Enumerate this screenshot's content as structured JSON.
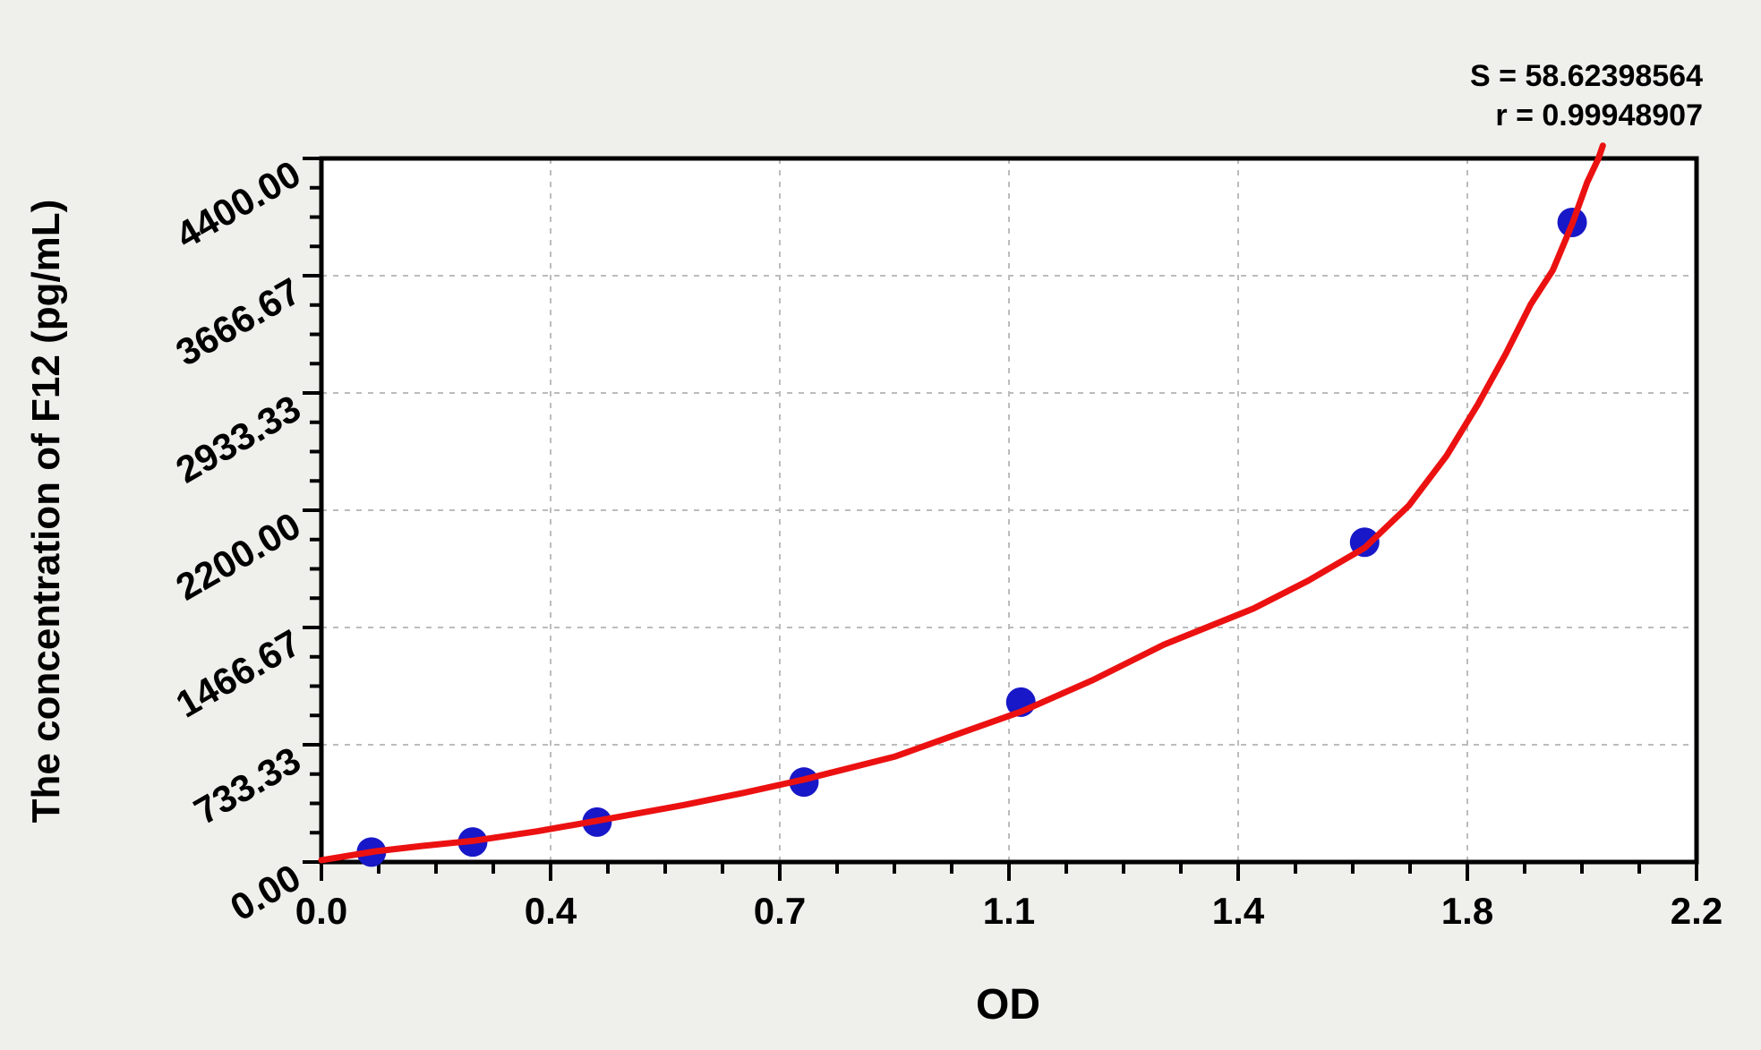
{
  "chart_data": {
    "type": "scatter",
    "title": "",
    "xlabel": "OD",
    "ylabel": "The concentration of F12 (pg/mL)",
    "stats": {
      "s": "S = 58.62398564",
      "r": "r = 0.99948907"
    },
    "xlim": [
      0,
      2.2
    ],
    "ylim": [
      0,
      4400
    ],
    "x_tick_labels": [
      "0.0",
      "0.4",
      "0.7",
      "1.1",
      "1.4",
      "1.8",
      "2.2"
    ],
    "y_tick_labels": [
      "0.00",
      "733.33",
      "1466.67",
      "2200.00",
      "2933.33",
      "3666.67",
      "4400.00"
    ],
    "minor_ticks_per_interval": 3,
    "grid": {
      "shown": true,
      "style": "dashed",
      "at": "interior-major-ticks"
    },
    "legend": {
      "shown": false
    },
    "series": [
      {
        "name": "standard-points",
        "type": "scatter",
        "color": "#1818c8",
        "points": [
          {
            "od": 0.08,
            "conc": 62.5
          },
          {
            "od": 0.242,
            "conc": 125
          },
          {
            "od": 0.441,
            "conc": 250
          },
          {
            "od": 0.772,
            "conc": 500
          },
          {
            "od": 1.119,
            "conc": 1000
          },
          {
            "od": 1.669,
            "conc": 2000
          },
          {
            "od": 2.001,
            "conc": 4000
          }
        ]
      },
      {
        "name": "fitted-curve",
        "type": "line",
        "color": "#ec1111",
        "points": [
          [
            0,
            12
          ],
          [
            0.087,
            67
          ],
          [
            0.16,
            100
          ],
          [
            0.242,
            132
          ],
          [
            0.345,
            192
          ],
          [
            0.441,
            258
          ],
          [
            0.574,
            352
          ],
          [
            0.675,
            432
          ],
          [
            0.772,
            516
          ],
          [
            0.918,
            660
          ],
          [
            1.018,
            800
          ],
          [
            1.119,
            940
          ],
          [
            1.233,
            1136
          ],
          [
            1.348,
            1360
          ],
          [
            1.491,
            1585
          ],
          [
            1.579,
            1760
          ],
          [
            1.669,
            1965
          ],
          [
            1.74,
            2230
          ],
          [
            1.8,
            2540
          ],
          [
            1.85,
            2860
          ],
          [
            1.895,
            3180
          ],
          [
            1.935,
            3490
          ],
          [
            1.97,
            3700
          ],
          [
            2.001,
            3990
          ],
          [
            2.025,
            4250
          ],
          [
            2.043,
            4400
          ],
          [
            2.05,
            4480
          ]
        ]
      }
    ],
    "colors": {
      "page_background": "#efefec",
      "plot_background": "#ffffff",
      "frame": "#000000",
      "grid": "#bcbcbc",
      "point": "#1818c8",
      "curve": "#ec1111",
      "text": "#000000"
    }
  }
}
